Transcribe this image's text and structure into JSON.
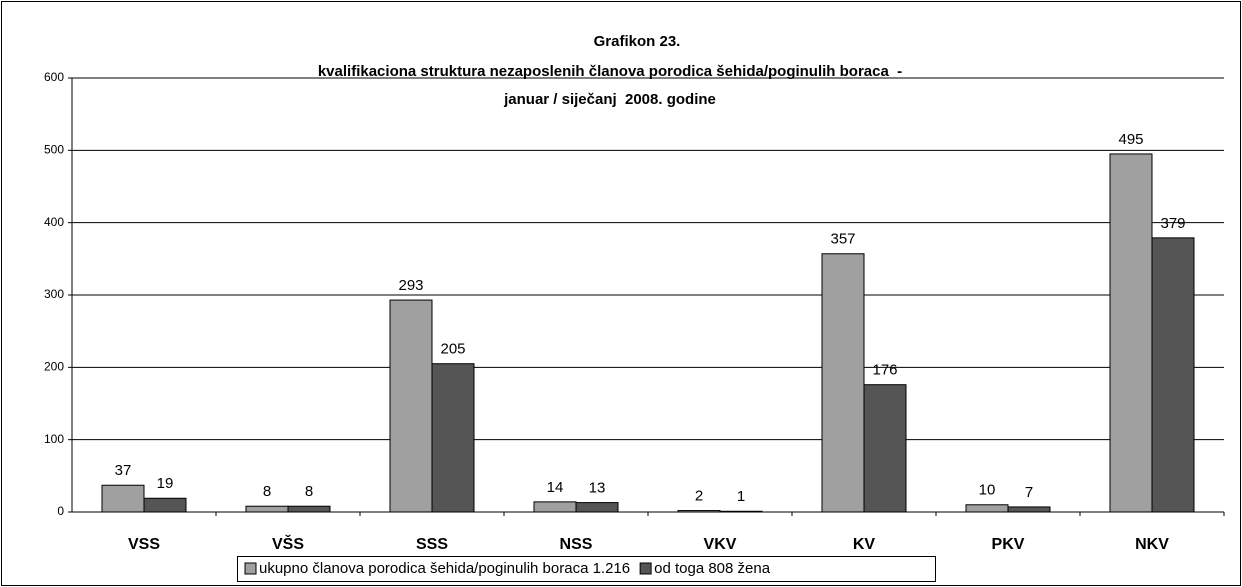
{
  "chart_data": {
    "type": "bar",
    "title": [
      "Grafikon 23.",
      "kvalifikaciona struktura nezaposlenih članova porodica šehida/poginulih boraca  -",
      "januar / siječanj  2008. godine"
    ],
    "categories": [
      "VSS",
      "VŠS",
      "SSS",
      "NSS",
      "VKV",
      "KV",
      "PKV",
      "NKV"
    ],
    "series": [
      {
        "name": "ukupno članova porodica šehida/poginulih boraca 1.216",
        "color": "#a0a0a0",
        "values": [
          37,
          8,
          293,
          14,
          2,
          357,
          10,
          495
        ]
      },
      {
        "name": "od toga 808 žena",
        "color": "#555555",
        "values": [
          19,
          8,
          205,
          13,
          1,
          176,
          7,
          379
        ]
      }
    ],
    "ylim": [
      0,
      600
    ],
    "yticks": [
      0,
      100,
      200,
      300,
      400,
      500,
      600
    ],
    "grid": true,
    "legend": "bottom"
  }
}
